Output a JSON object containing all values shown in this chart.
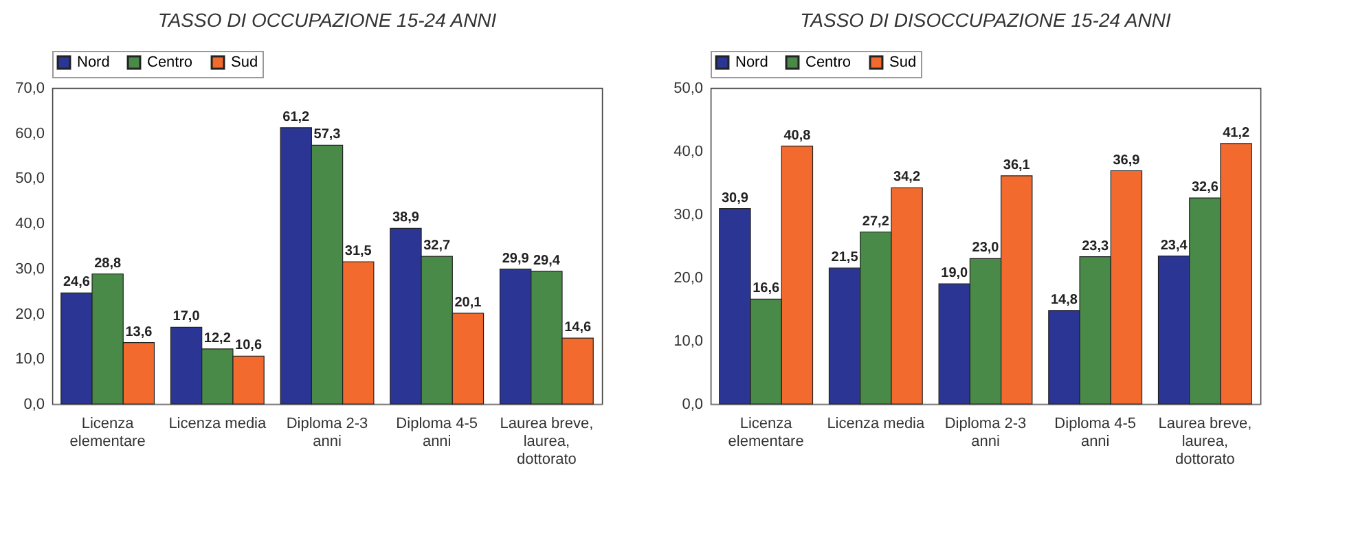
{
  "chart_data": [
    {
      "type": "bar",
      "title": "TASSO DI OCCUPAZIONE 15-24 ANNI",
      "categories": [
        "Licenza elementare",
        "Licenza media",
        "Diploma 2-3 anni",
        "Diploma 4-5 anni",
        "Laurea breve, laurea, dottorato"
      ],
      "series": [
        {
          "name": "Nord",
          "color": "#2b3594",
          "values": [
            24.6,
            17.0,
            61.2,
            38.9,
            29.9
          ],
          "value_labels": [
            "24,6",
            "17,0",
            "61,2",
            "38,9",
            "29,9"
          ]
        },
        {
          "name": "Centro",
          "color": "#4a8a48",
          "values": [
            28.8,
            12.2,
            57.3,
            32.7,
            29.4
          ],
          "value_labels": [
            "28,8",
            "12,2",
            "57,3",
            "32,7",
            "29,4"
          ]
        },
        {
          "name": "Sud",
          "color": "#f26a2e",
          "values": [
            13.6,
            10.6,
            31.5,
            20.1,
            14.6
          ],
          "value_labels": [
            "13,6",
            "10,6",
            "31,5",
            "20,1",
            "14,6"
          ]
        }
      ],
      "ylim": [
        0,
        70
      ],
      "yticks": [
        {
          "value": 0,
          "label": "0,0"
        },
        {
          "value": 10,
          "label": "10,0"
        },
        {
          "value": 20,
          "label": "20,0"
        },
        {
          "value": 30,
          "label": "30,0"
        },
        {
          "value": 40,
          "label": "40,0"
        },
        {
          "value": 50,
          "label": "50,0"
        },
        {
          "value": 60,
          "label": "60,0"
        },
        {
          "value": 70,
          "label": "70,0"
        }
      ],
      "grid": false,
      "legend": "top"
    },
    {
      "type": "bar",
      "title": "TASSO DI DISOCCUPAZIONE 15-24 ANNI",
      "categories": [
        "Licenza elementare",
        "Licenza media",
        "Diploma 2-3 anni",
        "Diploma 4-5 anni",
        "Laurea breve, laurea, dottorato"
      ],
      "series": [
        {
          "name": "Nord",
          "color": "#2b3594",
          "values": [
            30.9,
            21.5,
            19.0,
            14.8,
            23.4
          ],
          "value_labels": [
            "30,9",
            "21,5",
            "19,0",
            "14,8",
            "23,4"
          ]
        },
        {
          "name": "Centro",
          "color": "#4a8a48",
          "values": [
            16.6,
            27.2,
            23.0,
            23.3,
            32.6
          ],
          "value_labels": [
            "16,6",
            "27,2",
            "23,0",
            "23,3",
            "32,6"
          ]
        },
        {
          "name": "Sud",
          "color": "#f26a2e",
          "values": [
            40.8,
            34.2,
            36.1,
            36.9,
            41.2
          ],
          "value_labels": [
            "40,8",
            "34,2",
            "36,1",
            "36,9",
            "41,2"
          ]
        }
      ],
      "ylim": [
        0,
        50
      ],
      "yticks": [
        {
          "value": 0,
          "label": "0,0"
        },
        {
          "value": 10,
          "label": "10,0"
        },
        {
          "value": 20,
          "label": "20,0"
        },
        {
          "value": 30,
          "label": "30,0"
        },
        {
          "value": 40,
          "label": "40,0"
        },
        {
          "value": 50,
          "label": "50,0"
        }
      ],
      "grid": false,
      "legend": "top"
    }
  ]
}
